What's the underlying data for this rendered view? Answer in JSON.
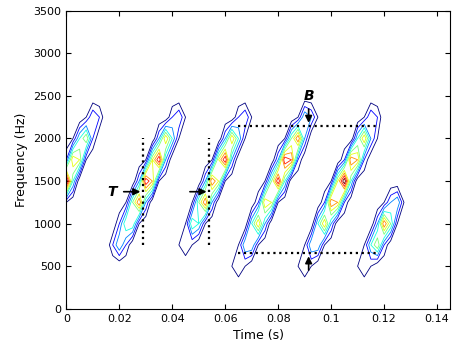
{
  "chart_data": {
    "type": "contour",
    "xlabel": "Time (s)",
    "ylabel": "Frequency (Hz)",
    "xlim": [
      0,
      0.145
    ],
    "xticks": [
      0,
      0.02,
      0.04,
      0.06,
      0.08,
      0.1,
      0.12,
      0.14
    ],
    "ylim": [
      0,
      3500
    ],
    "yticks": [
      0,
      500,
      1000,
      1500,
      2000,
      2500,
      3000,
      3500
    ],
    "levels": [
      1,
      2,
      3,
      4,
      5,
      6,
      7,
      8,
      9
    ],
    "x": [
      0,
      0.0025,
      0.005,
      0.0075,
      0.01,
      0.0125,
      0.015,
      0.0175,
      0.02,
      0.0225,
      0.025,
      0.0275,
      0.03,
      0.0325,
      0.035,
      0.0375,
      0.04,
      0.0425,
      0.045,
      0.0475,
      0.05,
      0.0525,
      0.055,
      0.0575,
      0.06,
      0.0625,
      0.065,
      0.0675,
      0.07,
      0.0725,
      0.075,
      0.0775,
      0.08,
      0.0825,
      0.085,
      0.0875,
      0.09,
      0.0925,
      0.095,
      0.0975,
      0.1,
      0.1025,
      0.105,
      0.1075,
      0.11,
      0.1125,
      0.115,
      0.1175,
      0.12,
      0.1225,
      0.125,
      0.1275,
      0.13,
      0.1325,
      0.135,
      0.1375,
      0.14
    ],
    "y": [
      250,
      500,
      750,
      1000,
      1250,
      1500,
      1750,
      2000,
      2250,
      2500,
      2750
    ],
    "z": [
      [
        0,
        0,
        0,
        0,
        0,
        0,
        0,
        0,
        0,
        0,
        0,
        0,
        0,
        0,
        0,
        0,
        0,
        0,
        0,
        0,
        0,
        0,
        0,
        0,
        0,
        0,
        0,
        0,
        0,
        0,
        0,
        0,
        0,
        0,
        0,
        0,
        0,
        0,
        0,
        0,
        0,
        0,
        0,
        0,
        0,
        0,
        0,
        0,
        0,
        0,
        0,
        0,
        0,
        0,
        0,
        0,
        0
      ],
      [
        0,
        0,
        0,
        0,
        0,
        0,
        0,
        0,
        0,
        0,
        0,
        0,
        0,
        0,
        0,
        0,
        0,
        0,
        0,
        0,
        0,
        0,
        0,
        0,
        0,
        1,
        2,
        1,
        0,
        0,
        0,
        0,
        0,
        0,
        0,
        1,
        2,
        1,
        0,
        0,
        0,
        0,
        0,
        0,
        1,
        2,
        1,
        0,
        0,
        0,
        0,
        0,
        0,
        0,
        0,
        0,
        0
      ],
      [
        0,
        0,
        0,
        0,
        0,
        0,
        0,
        2,
        4,
        2,
        0,
        0,
        0,
        0,
        0,
        0,
        0,
        1,
        2,
        1,
        0,
        0,
        0,
        0,
        0,
        0,
        1,
        4,
        4,
        1,
        0,
        0,
        0,
        0,
        0,
        0,
        1,
        4,
        4,
        1,
        0,
        0,
        0,
        0,
        0,
        1,
        4,
        6,
        2,
        0,
        0,
        0,
        0,
        0,
        0,
        0,
        0
      ],
      [
        0,
        0,
        0,
        0,
        0,
        0,
        0,
        0,
        2,
        5,
        5,
        1,
        0,
        0,
        0,
        0,
        0,
        0,
        1,
        5,
        4,
        1,
        0,
        0,
        0,
        0,
        0,
        0,
        4,
        7,
        3,
        0,
        0,
        0,
        0,
        0,
        0,
        0,
        4,
        7,
        3,
        0,
        0,
        0,
        0,
        0,
        0,
        3,
        8,
        5,
        1,
        0,
        0,
        0,
        0,
        0,
        0
      ],
      [
        1,
        0,
        0,
        0,
        0,
        0,
        0,
        0,
        0,
        1,
        5,
        8,
        3,
        0,
        0,
        0,
        0,
        0,
        0,
        1,
        5,
        8,
        3,
        0,
        0,
        0,
        0,
        0,
        0,
        2,
        7,
        6,
        1,
        0,
        0,
        0,
        0,
        0,
        0,
        2,
        8,
        7,
        2,
        0,
        0,
        0,
        0,
        0,
        1,
        3,
        4,
        1,
        0,
        0,
        0,
        0,
        0
      ],
      [
        10,
        4,
        0,
        0,
        0,
        0,
        0,
        0,
        0,
        0,
        0,
        3,
        9,
        7,
        1,
        0,
        0,
        0,
        0,
        0,
        0,
        3,
        8,
        6,
        1,
        0,
        0,
        0,
        0,
        0,
        1,
        5,
        9,
        4,
        0,
        0,
        0,
        0,
        0,
        0,
        1,
        6,
        10,
        4,
        0,
        0,
        0,
        0,
        0,
        0,
        0,
        0,
        0,
        0,
        0,
        0,
        0
      ],
      [
        2,
        7,
        6,
        1,
        0,
        0,
        0,
        0,
        0,
        0,
        0,
        0,
        1,
        6,
        9,
        3,
        0,
        0,
        0,
        0,
        0,
        0,
        1,
        6,
        9,
        3,
        0,
        0,
        0,
        0,
        0,
        0,
        3,
        9,
        8,
        2,
        0,
        0,
        0,
        0,
        0,
        0,
        2,
        8,
        7,
        2,
        0,
        0,
        0,
        0,
        0,
        0,
        0,
        0,
        0,
        0,
        0
      ],
      [
        0,
        1,
        4,
        6,
        2,
        0,
        0,
        0,
        0,
        0,
        0,
        0,
        0,
        0,
        3,
        7,
        4,
        1,
        0,
        0,
        0,
        0,
        0,
        0,
        3,
        7,
        4,
        1,
        0,
        0,
        0,
        0,
        0,
        1,
        5,
        8,
        3,
        0,
        0,
        0,
        0,
        0,
        0,
        0,
        4,
        7,
        3,
        1,
        0,
        0,
        0,
        0,
        0,
        0,
        0,
        0,
        0
      ],
      [
        0,
        0,
        0,
        1,
        3,
        2,
        0,
        0,
        0,
        0,
        0,
        0,
        0,
        0,
        0,
        0,
        2,
        3,
        1,
        0,
        0,
        0,
        0,
        0,
        0,
        0,
        2,
        3,
        1,
        0,
        0,
        0,
        0,
        0,
        0,
        1,
        4,
        3,
        1,
        0,
        0,
        0,
        0,
        0,
        0,
        1,
        3,
        2,
        0,
        0,
        0,
        0,
        0,
        0,
        0,
        0,
        0
      ],
      [
        0,
        0,
        0,
        0,
        0,
        0,
        0,
        0,
        0,
        0,
        0,
        0,
        0,
        0,
        0,
        0,
        0,
        0,
        0,
        0,
        0,
        0,
        0,
        0,
        0,
        0,
        0,
        0,
        0,
        0,
        0,
        0,
        0,
        0,
        0,
        0,
        0,
        0,
        0,
        0,
        0,
        0,
        0,
        0,
        0,
        0,
        0,
        0,
        0,
        0,
        0,
        0,
        0,
        0,
        0,
        0,
        0
      ],
      [
        0,
        0,
        0,
        0,
        0,
        0,
        0,
        0,
        0,
        0,
        0,
        0,
        0,
        0,
        0,
        0,
        0,
        0,
        0,
        0,
        0,
        0,
        0,
        0,
        0,
        0,
        0,
        0,
        0,
        0,
        0,
        0,
        0,
        0,
        0,
        0,
        0,
        0,
        0,
        0,
        0,
        0,
        0,
        0,
        0,
        0,
        0,
        0,
        0,
        0,
        0,
        0,
        0,
        0,
        0,
        0,
        0
      ]
    ],
    "annotations": [
      {
        "text": "T",
        "x": [
          0.029,
          0.054
        ],
        "y": [
          750,
          2000
        ]
      },
      {
        "text": "B",
        "x": [
          0.065,
          0.118
        ],
        "y": [
          650,
          2150
        ]
      }
    ]
  }
}
